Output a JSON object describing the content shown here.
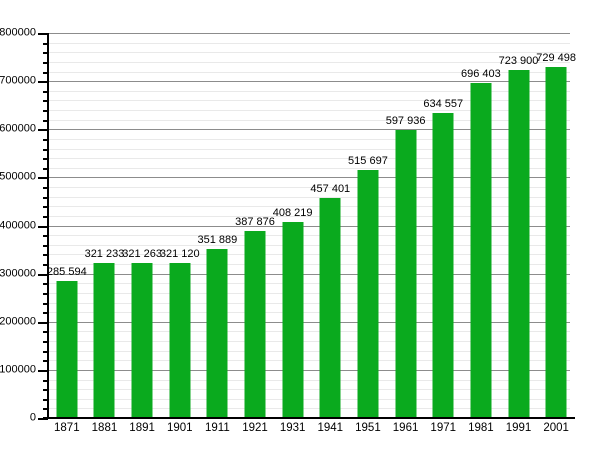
{
  "chart_data": {
    "type": "bar",
    "title": "",
    "xlabel": "",
    "ylabel": "",
    "categories": [
      "1871",
      "1881",
      "1891",
      "1901",
      "1911",
      "1921",
      "1931",
      "1941",
      "1951",
      "1961",
      "1971",
      "1981",
      "1991",
      "2001"
    ],
    "values": [
      285594,
      321233,
      321263,
      321120,
      351889,
      387876,
      408219,
      457401,
      515697,
      597936,
      634557,
      696403,
      723900,
      729498
    ],
    "bar_labels": [
      "285 594",
      "321 233",
      "321 263",
      "321 120",
      "351 889",
      "387 876",
      "408 219",
      "457 401",
      "515 697",
      "597 936",
      "634 557",
      "696 403",
      "723 900",
      "729 498"
    ],
    "ylim": [
      0,
      800000
    ],
    "y_major_step": 100000,
    "y_minor_step": 20000,
    "y_tick_labels": [
      "0",
      "100000",
      "200000",
      "300000",
      "400000",
      "500000",
      "600000",
      "700000",
      "800000"
    ],
    "grid": "horizontal major+minor",
    "legend": "none",
    "colors": {
      "bar": "#0aaa1e",
      "major_grid": "#8c8c8c",
      "minor_grid": "#e9e9e9",
      "axis": "#000000",
      "text": "#000000",
      "background": "#ffffff"
    }
  }
}
